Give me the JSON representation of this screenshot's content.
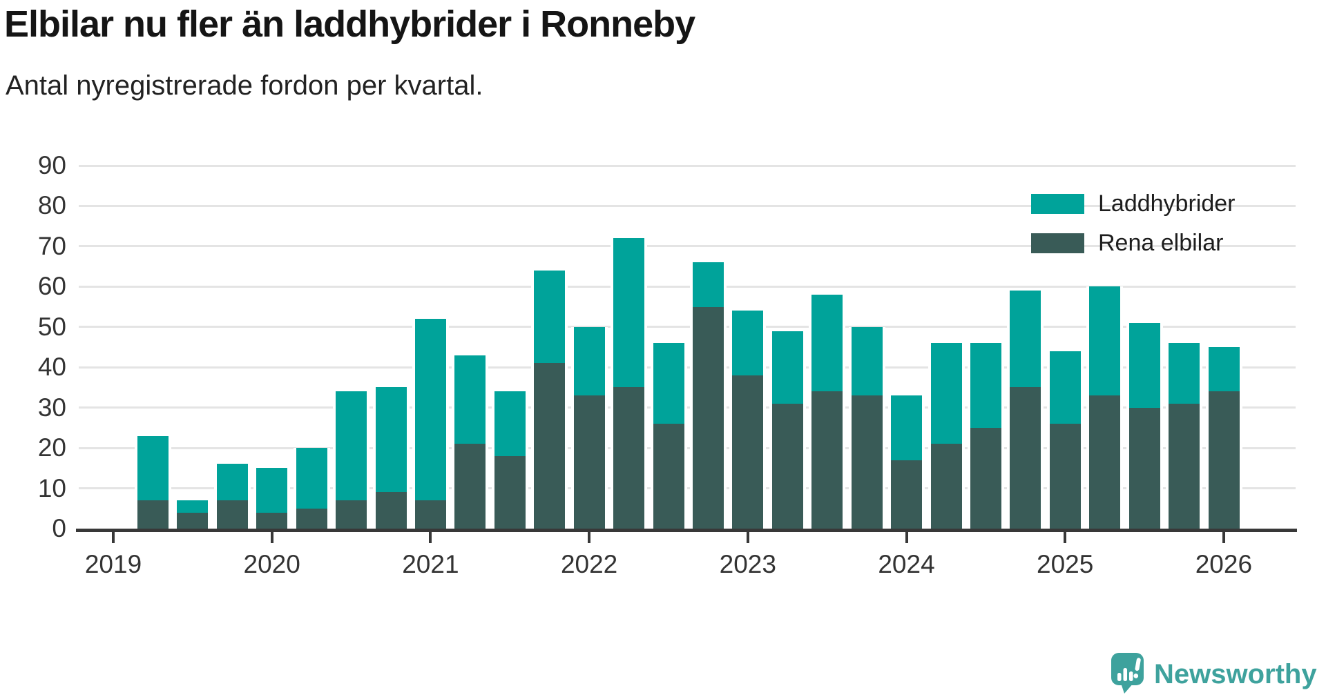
{
  "title": "Elbilar nu fler än laddhybrider i Ronneby",
  "subtitle": "Antal nyregistrerade fordon per kvartal.",
  "legend": {
    "items": [
      {
        "label": "Laddhybrider",
        "color": "#00a39a"
      },
      {
        "label": "Rena elbilar",
        "color": "#395b57"
      }
    ]
  },
  "branding": {
    "name": "Newsworthy",
    "color": "#3ea29d",
    "icon": "newsworthy-speech-bubble-chart-icon"
  },
  "axis": {
    "y_ticks": [
      0,
      10,
      20,
      30,
      40,
      50,
      60,
      70,
      80,
      90
    ],
    "x_ticks": [
      "2019",
      "2020",
      "2021",
      "2022",
      "2023",
      "2024",
      "2025",
      "2026"
    ]
  },
  "chart_data": {
    "type": "bar",
    "stacked": true,
    "title": "Elbilar nu fler än laddhybrider i Ronneby",
    "subtitle": "Antal nyregistrerade fordon per kvartal.",
    "x": [
      "2019-Q2",
      "2019-Q3",
      "2019-Q4",
      "2020-Q1",
      "2020-Q2",
      "2020-Q3",
      "2020-Q4",
      "2021-Q1",
      "2021-Q2",
      "2021-Q3",
      "2021-Q4",
      "2022-Q1",
      "2022-Q2",
      "2022-Q3",
      "2022-Q4",
      "2023-Q1",
      "2023-Q2",
      "2023-Q3",
      "2023-Q4",
      "2024-Q1",
      "2024-Q2",
      "2024-Q3",
      "2024-Q4",
      "2025-Q1",
      "2025-Q2",
      "2025-Q3",
      "2025-Q4",
      "2026-Q1"
    ],
    "series": [
      {
        "name": "Rena elbilar",
        "color": "#395b57",
        "values": [
          7,
          4,
          7,
          4,
          5,
          7,
          9,
          7,
          21,
          18,
          41,
          33,
          35,
          26,
          55,
          38,
          31,
          34,
          33,
          17,
          21,
          25,
          35,
          26,
          33,
          30,
          31,
          34
        ]
      },
      {
        "name": "Laddhybrider",
        "color": "#00a39a",
        "values": [
          16,
          3,
          9,
          11,
          15,
          27,
          26,
          45,
          22,
          16,
          23,
          17,
          37,
          20,
          11,
          16,
          18,
          24,
          17,
          16,
          25,
          21,
          24,
          18,
          27,
          21,
          15,
          11
        ]
      }
    ],
    "totals": [
      23,
      7,
      16,
      15,
      20,
      34,
      35,
      52,
      43,
      34,
      64,
      50,
      72,
      46,
      66,
      54,
      49,
      58,
      50,
      33,
      46,
      46,
      59,
      44,
      60,
      51,
      46,
      45
    ],
    "ylim": [
      0,
      90
    ],
    "grid": "horizontal",
    "legend_position": "top-right"
  }
}
